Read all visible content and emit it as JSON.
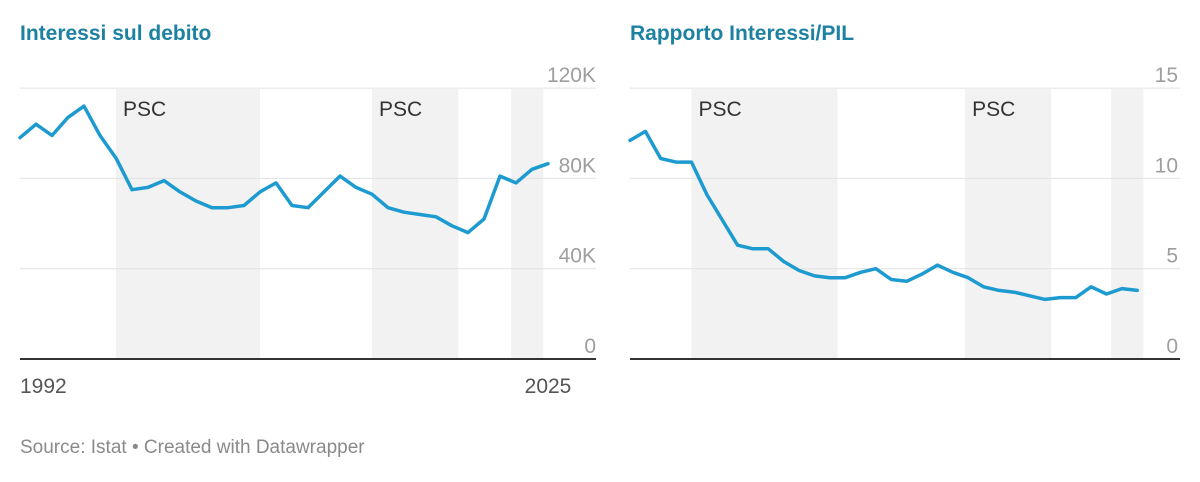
{
  "footer": {
    "source": "Source: Istat",
    "separator": "•",
    "credit": "Created with Datawrapper"
  },
  "colors": {
    "title": "#1d81a2",
    "line": "#1d9bd0",
    "band": "#f2f2f2",
    "grid": "#e2e2e2",
    "baseline": "#333333",
    "tick": "#9e9e9e"
  },
  "chart_data": [
    {
      "type": "line",
      "title": "Interessi sul debito",
      "x": [
        1992,
        1993,
        1994,
        1995,
        1996,
        1997,
        1998,
        1999,
        2000,
        2001,
        2002,
        2003,
        2004,
        2005,
        2006,
        2007,
        2008,
        2009,
        2010,
        2011,
        2012,
        2013,
        2014,
        2015,
        2016,
        2017,
        2018,
        2019,
        2020,
        2021,
        2022,
        2023,
        2024,
        2025
      ],
      "series": [
        {
          "values": [
            98000,
            104000,
            99000,
            107000,
            112000,
            99000,
            89000,
            75000,
            76000,
            79000,
            74000,
            70000,
            67000,
            67000,
            68000,
            74000,
            78000,
            68000,
            67000,
            74000,
            81000,
            76000,
            73000,
            67000,
            65000,
            64000,
            63000,
            59000,
            56000,
            62000,
            81000,
            78000,
            84000,
            86500
          ]
        }
      ],
      "x_ticks": [
        "1992",
        "2025"
      ],
      "y_ticks": [
        "0",
        "40K",
        "80K",
        "120K"
      ],
      "ylim": [
        0,
        128000
      ],
      "xlim": [
        1992,
        2028
      ],
      "bands": [
        {
          "label": "PSC",
          "start": 1998,
          "end": 2007
        },
        {
          "label": "PSC",
          "start": 2014,
          "end": 2019.4
        },
        {
          "start": 2022.7,
          "end": 2024.7
        }
      ],
      "grid": true
    },
    {
      "type": "line",
      "title": "Rapporto Interessi/PIL",
      "x": [
        1992,
        1993,
        1994,
        1995,
        1996,
        1997,
        1998,
        1999,
        2000,
        2001,
        2002,
        2003,
        2004,
        2005,
        2006,
        2007,
        2008,
        2009,
        2010,
        2011,
        2012,
        2013,
        2014,
        2015,
        2016,
        2017,
        2018,
        2019,
        2020,
        2021,
        2022,
        2023,
        2024,
        2025
      ],
      "series": [
        {
          "values": [
            12.1,
            12.6,
            11.1,
            10.9,
            10.9,
            9.1,
            7.7,
            6.3,
            6.1,
            6.1,
            5.4,
            4.9,
            4.6,
            4.5,
            4.5,
            4.8,
            5.0,
            4.4,
            4.3,
            4.7,
            5.2,
            4.8,
            4.5,
            4.0,
            3.8,
            3.7,
            3.5,
            3.3,
            3.4,
            3.4,
            4.0,
            3.6,
            3.9,
            3.8
          ]
        }
      ],
      "y_ticks": [
        "0",
        "5",
        "10",
        "15"
      ],
      "ylim": [
        0,
        16
      ],
      "xlim": [
        1992,
        2025.7
      ],
      "bands": [
        {
          "label": "PSC",
          "start": 1996,
          "end": 2005.5
        },
        {
          "label": "PSC",
          "start": 2013.8,
          "end": 2019.4
        },
        {
          "start": 2023.3,
          "end": 2025.4
        }
      ],
      "grid": true
    }
  ]
}
